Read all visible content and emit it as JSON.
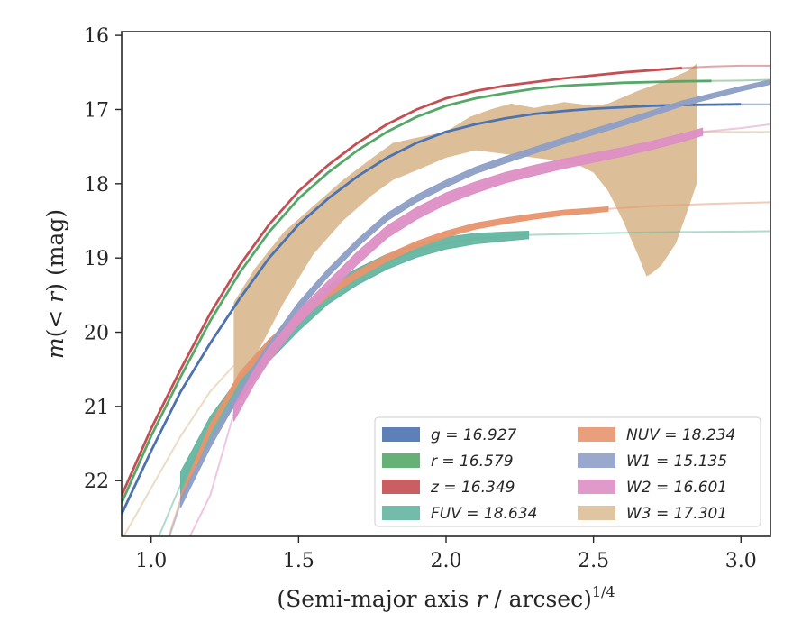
{
  "chart_data": {
    "type": "line",
    "title": "",
    "xlabel": "(Semi-major axis r / arcsec)^1/4",
    "xlabel_parts": {
      "main": "(Semi-major axis ",
      "var": "r",
      "rest": " / arcsec)",
      "sup": "1/4"
    },
    "ylabel": "m(< r) (mag)",
    "ylabel_parts": {
      "m": "m",
      "open": "(",
      "lt": "< ",
      "r": "r",
      "close": ")",
      "unit": " (mag)"
    },
    "xlim": [
      0.9,
      3.1
    ],
    "ylim": [
      22.75,
      15.95
    ],
    "y_inverted": true,
    "xticks": [
      1.0,
      1.5,
      2.0,
      2.5,
      3.0
    ],
    "xtick_labels": [
      "1.0",
      "1.5",
      "2.0",
      "2.5",
      "3.0"
    ],
    "yticks": [
      16,
      17,
      18,
      19,
      20,
      21,
      22
    ],
    "ytick_labels": [
      "16",
      "17",
      "18",
      "19",
      "20",
      "21",
      "22"
    ],
    "grid": false,
    "legend": {
      "placement": "lower-right",
      "columns": 2
    },
    "series": [
      {
        "key": "g",
        "label": "g = 16.927",
        "color": "#4c72b0",
        "kind": "line",
        "strong_range": [
          0.9,
          3.05
        ],
        "points": [
          [
            0.9,
            22.45
          ],
          [
            1.0,
            21.6
          ],
          [
            1.1,
            20.8
          ],
          [
            1.2,
            20.15
          ],
          [
            1.3,
            19.55
          ],
          [
            1.4,
            19.0
          ],
          [
            1.5,
            18.55
          ],
          [
            1.6,
            18.2
          ],
          [
            1.7,
            17.9
          ],
          [
            1.8,
            17.65
          ],
          [
            1.9,
            17.45
          ],
          [
            2.0,
            17.3
          ],
          [
            2.1,
            17.2
          ],
          [
            2.2,
            17.12
          ],
          [
            2.3,
            17.06
          ],
          [
            2.4,
            17.02
          ],
          [
            2.5,
            16.99
          ],
          [
            2.6,
            16.97
          ],
          [
            2.7,
            16.95
          ],
          [
            2.8,
            16.94
          ],
          [
            2.9,
            16.935
          ],
          [
            3.0,
            16.93
          ],
          [
            3.1,
            16.93
          ]
        ]
      },
      {
        "key": "r",
        "label": "r = 16.579",
        "color": "#55a868",
        "kind": "line",
        "strong_range": [
          0.9,
          2.98
        ],
        "points": [
          [
            0.9,
            22.3
          ],
          [
            1.0,
            21.4
          ],
          [
            1.1,
            20.6
          ],
          [
            1.2,
            19.85
          ],
          [
            1.3,
            19.2
          ],
          [
            1.4,
            18.65
          ],
          [
            1.5,
            18.2
          ],
          [
            1.6,
            17.85
          ],
          [
            1.7,
            17.55
          ],
          [
            1.8,
            17.3
          ],
          [
            1.9,
            17.1
          ],
          [
            2.0,
            16.95
          ],
          [
            2.1,
            16.85
          ],
          [
            2.2,
            16.78
          ],
          [
            2.3,
            16.72
          ],
          [
            2.4,
            16.68
          ],
          [
            2.5,
            16.66
          ],
          [
            2.6,
            16.64
          ],
          [
            2.7,
            16.63
          ],
          [
            2.8,
            16.62
          ],
          [
            2.9,
            16.615
          ],
          [
            3.0,
            16.61
          ],
          [
            3.1,
            16.6
          ]
        ]
      },
      {
        "key": "z",
        "label": "z = 16.349",
        "color": "#c44e52",
        "kind": "line",
        "strong_range": [
          0.9,
          2.8
        ],
        "points": [
          [
            0.9,
            22.2
          ],
          [
            1.0,
            21.3
          ],
          [
            1.1,
            20.5
          ],
          [
            1.2,
            19.75
          ],
          [
            1.3,
            19.1
          ],
          [
            1.4,
            18.55
          ],
          [
            1.5,
            18.1
          ],
          [
            1.6,
            17.75
          ],
          [
            1.7,
            17.45
          ],
          [
            1.8,
            17.2
          ],
          [
            1.9,
            17.0
          ],
          [
            2.0,
            16.85
          ],
          [
            2.1,
            16.75
          ],
          [
            2.2,
            16.68
          ],
          [
            2.3,
            16.63
          ],
          [
            2.4,
            16.58
          ],
          [
            2.5,
            16.54
          ],
          [
            2.6,
            16.5
          ],
          [
            2.7,
            16.47
          ],
          [
            2.8,
            16.44
          ],
          [
            2.9,
            16.42
          ],
          [
            3.0,
            16.41
          ],
          [
            3.1,
            16.41
          ]
        ]
      },
      {
        "key": "FUV",
        "label": "FUV = 18.634",
        "color": "#64b5a0",
        "kind": "band",
        "strong_range": [
          1.1,
          2.28
        ],
        "points": [
          [
            1.0,
            23.0
          ],
          [
            1.1,
            22.05
          ],
          [
            1.2,
            21.3
          ],
          [
            1.3,
            20.75
          ],
          [
            1.4,
            20.25
          ],
          [
            1.5,
            19.85
          ],
          [
            1.6,
            19.5
          ],
          [
            1.7,
            19.25
          ],
          [
            1.8,
            19.05
          ],
          [
            1.9,
            18.9
          ],
          [
            2.0,
            18.8
          ],
          [
            2.1,
            18.74
          ],
          [
            2.2,
            18.71
          ],
          [
            2.28,
            18.69
          ],
          [
            2.4,
            18.68
          ],
          [
            2.6,
            18.66
          ],
          [
            2.8,
            18.65
          ],
          [
            3.0,
            18.645
          ],
          [
            3.1,
            18.64
          ]
        ],
        "halfwidth": [
          0.17,
          0.05
        ]
      },
      {
        "key": "NUV",
        "label": "NUV = 18.234",
        "color": "#e8956e",
        "kind": "band",
        "strong_range": [
          1.1,
          2.55
        ],
        "points": [
          [
            1.0,
            23.5
          ],
          [
            1.1,
            22.25
          ],
          [
            1.2,
            21.3
          ],
          [
            1.3,
            20.6
          ],
          [
            1.4,
            20.15
          ],
          [
            1.5,
            19.8
          ],
          [
            1.6,
            19.48
          ],
          [
            1.7,
            19.22
          ],
          [
            1.8,
            19.0
          ],
          [
            1.9,
            18.82
          ],
          [
            2.0,
            18.68
          ],
          [
            2.1,
            18.57
          ],
          [
            2.2,
            18.5
          ],
          [
            2.3,
            18.44
          ],
          [
            2.4,
            18.39
          ],
          [
            2.5,
            18.36
          ],
          [
            2.55,
            18.34
          ],
          [
            2.7,
            18.3
          ],
          [
            2.9,
            18.27
          ],
          [
            3.1,
            18.25
          ]
        ],
        "halfwidth": [
          0.06,
          0.03
        ]
      },
      {
        "key": "W1",
        "label": "W1 = 15.135",
        "color": "#8e9fc6",
        "kind": "band",
        "strong_range": [
          1.1,
          3.1
        ],
        "points": [
          [
            1.0,
            23.5
          ],
          [
            1.1,
            22.3
          ],
          [
            1.2,
            21.5
          ],
          [
            1.3,
            20.8
          ],
          [
            1.4,
            20.2
          ],
          [
            1.5,
            19.65
          ],
          [
            1.6,
            19.2
          ],
          [
            1.7,
            18.8
          ],
          [
            1.8,
            18.45
          ],
          [
            1.9,
            18.2
          ],
          [
            2.0,
            18.0
          ],
          [
            2.1,
            17.82
          ],
          [
            2.2,
            17.68
          ],
          [
            2.3,
            17.55
          ],
          [
            2.4,
            17.42
          ],
          [
            2.5,
            17.3
          ],
          [
            2.6,
            17.18
          ],
          [
            2.7,
            17.05
          ],
          [
            2.8,
            16.92
          ],
          [
            2.9,
            16.82
          ],
          [
            3.0,
            16.72
          ],
          [
            3.1,
            16.63
          ]
        ],
        "halfwidth": [
          0.06,
          0.03
        ]
      },
      {
        "key": "W2",
        "label": "W2 = 16.601",
        "color": "#dd8fc4",
        "kind": "band",
        "strong_range": [
          1.28,
          2.87
        ],
        "points": [
          [
            1.0,
            24.0
          ],
          [
            1.1,
            23.0
          ],
          [
            1.2,
            22.2
          ],
          [
            1.28,
            21.1
          ],
          [
            1.35,
            20.6
          ],
          [
            1.4,
            20.3
          ],
          [
            1.5,
            19.8
          ],
          [
            1.6,
            19.4
          ],
          [
            1.7,
            19.0
          ],
          [
            1.8,
            18.65
          ],
          [
            1.9,
            18.4
          ],
          [
            2.0,
            18.2
          ],
          [
            2.1,
            18.05
          ],
          [
            2.2,
            17.92
          ],
          [
            2.3,
            17.82
          ],
          [
            2.4,
            17.73
          ],
          [
            2.5,
            17.65
          ],
          [
            2.6,
            17.57
          ],
          [
            2.7,
            17.48
          ],
          [
            2.8,
            17.38
          ],
          [
            2.87,
            17.3
          ],
          [
            3.0,
            17.25
          ],
          [
            3.1,
            17.2
          ]
        ],
        "halfwidth": [
          0.1,
          0.05
        ]
      },
      {
        "key": "W3",
        "label": "W3 = 17.301",
        "color": "#dcbf98",
        "kind": "envelope",
        "tail_points": [
          [
            0.9,
            22.8
          ],
          [
            1.0,
            22.1
          ],
          [
            1.1,
            21.4
          ],
          [
            1.2,
            20.8
          ],
          [
            1.28,
            20.45
          ]
        ],
        "tail_right": [
          [
            2.85,
            17.3
          ],
          [
            3.0,
            17.3
          ],
          [
            3.1,
            17.3
          ]
        ],
        "upper": [
          [
            1.28,
            19.6
          ],
          [
            1.35,
            19.15
          ],
          [
            1.45,
            18.65
          ],
          [
            1.55,
            18.3
          ],
          [
            1.65,
            17.95
          ],
          [
            1.75,
            17.65
          ],
          [
            1.82,
            17.45
          ],
          [
            1.9,
            17.38
          ],
          [
            2.0,
            17.3
          ],
          [
            2.08,
            17.1
          ],
          [
            2.15,
            17.0
          ],
          [
            2.22,
            16.92
          ],
          [
            2.3,
            16.98
          ],
          [
            2.4,
            16.9
          ],
          [
            2.5,
            16.95
          ],
          [
            2.55,
            16.92
          ],
          [
            2.65,
            16.75
          ],
          [
            2.72,
            16.65
          ],
          [
            2.78,
            16.55
          ],
          [
            2.82,
            16.48
          ],
          [
            2.85,
            16.38
          ]
        ],
        "lower": [
          [
            2.85,
            18.0
          ],
          [
            2.82,
            18.35
          ],
          [
            2.78,
            18.8
          ],
          [
            2.73,
            19.1
          ],
          [
            2.7,
            19.2
          ],
          [
            2.68,
            19.25
          ],
          [
            2.65,
            18.95
          ],
          [
            2.6,
            18.5
          ],
          [
            2.55,
            18.1
          ],
          [
            2.5,
            17.85
          ],
          [
            2.45,
            17.75
          ],
          [
            2.4,
            17.7
          ],
          [
            2.3,
            17.65
          ],
          [
            2.2,
            17.6
          ],
          [
            2.1,
            17.55
          ],
          [
            2.0,
            17.65
          ],
          [
            1.9,
            17.82
          ],
          [
            1.82,
            17.95
          ],
          [
            1.75,
            18.15
          ],
          [
            1.65,
            18.5
          ],
          [
            1.55,
            18.95
          ],
          [
            1.45,
            19.6
          ],
          [
            1.35,
            20.35
          ],
          [
            1.28,
            20.95
          ]
        ]
      }
    ]
  }
}
